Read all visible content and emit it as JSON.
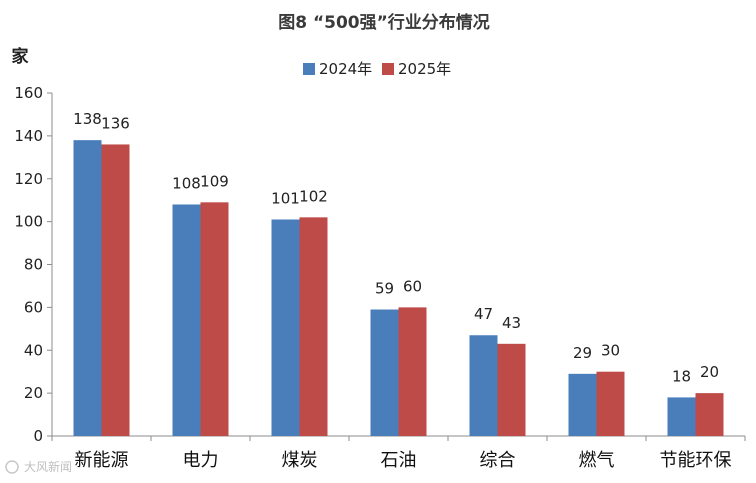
{
  "chart_data": {
    "type": "bar",
    "title": "图8 “500强”行业分布情况",
    "ylabel": "家",
    "xlabel": "",
    "ylim": [
      0,
      160
    ],
    "yticks": [
      0,
      20,
      40,
      60,
      80,
      100,
      120,
      140,
      160
    ],
    "grid": false,
    "legend": "top-center",
    "categories": [
      "新能源",
      "电力",
      "煤炭",
      "石油",
      "综合",
      "燃气",
      "节能环保"
    ],
    "series": [
      {
        "name": "2024年",
        "color": "#4a7ebb",
        "values": [
          138,
          108,
          101,
          59,
          47,
          29,
          18
        ]
      },
      {
        "name": "2025年",
        "color": "#be4b48",
        "values": [
          136,
          109,
          102,
          60,
          43,
          30,
          20
        ]
      }
    ]
  },
  "watermark": "大风新闻"
}
